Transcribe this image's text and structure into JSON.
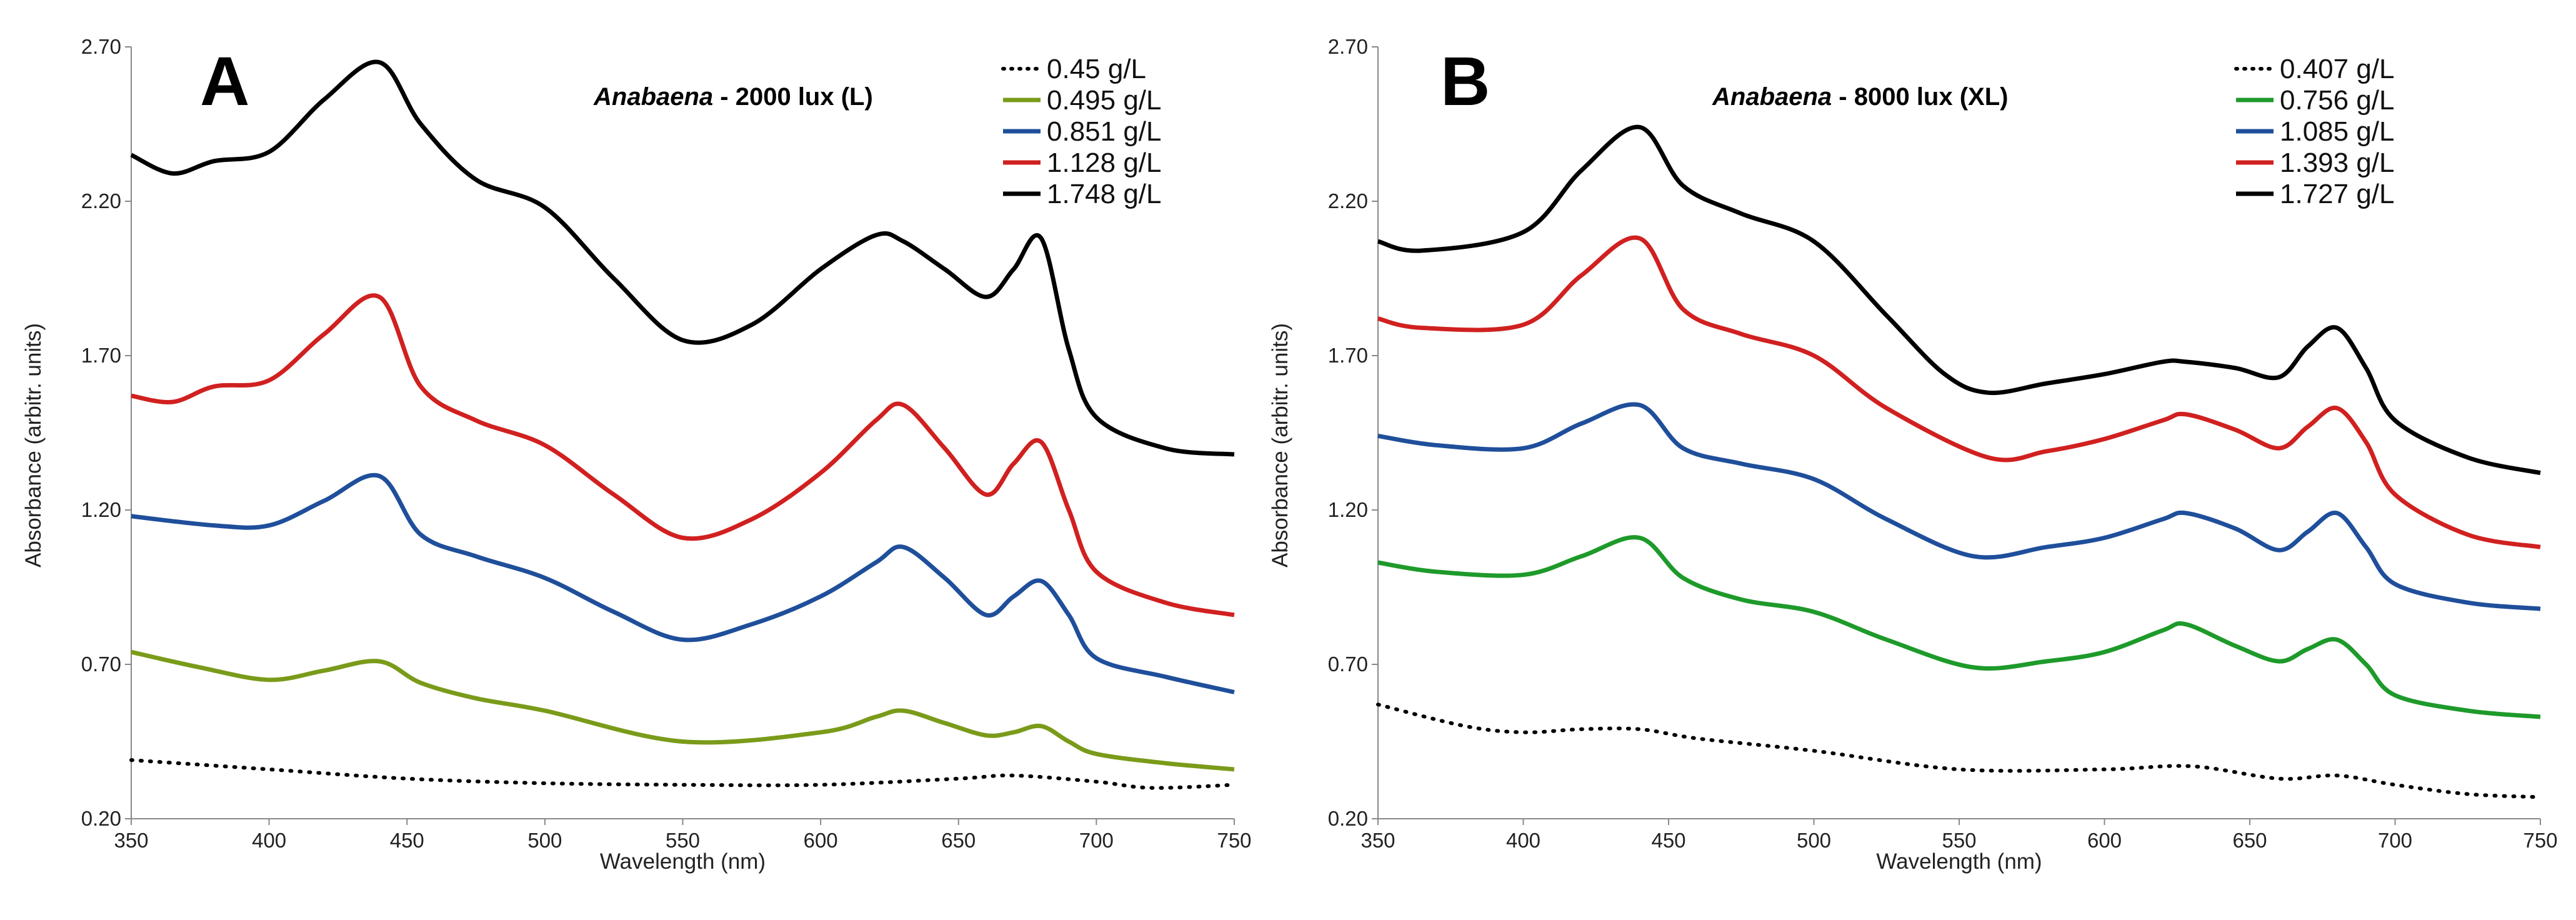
{
  "chart_data": [
    {
      "type": "line",
      "panel_label": "A",
      "title_italic": "Anabaena",
      "title_rest": " - 2000 lux (L)",
      "xlabel": "Wavelength (nm)",
      "ylabel": "Absorbance (arbitr. units)",
      "xlim": [
        350,
        750
      ],
      "ylim": [
        0.2,
        2.7
      ],
      "x_ticks": [
        "350",
        "400",
        "450",
        "500",
        "550",
        "600",
        "650",
        "700",
        "750"
      ],
      "y_ticks": [
        "0.20",
        "0.70",
        "1.20",
        "1.70",
        "2.20",
        "2.70"
      ],
      "series": [
        {
          "name": "0.45 g/L",
          "color": "#000000",
          "dashed": true,
          "x": [
            350,
            400,
            450,
            500,
            550,
            600,
            650,
            670,
            700,
            720,
            750
          ],
          "y": [
            0.39,
            0.36,
            0.33,
            0.315,
            0.31,
            0.31,
            0.33,
            0.34,
            0.32,
            0.3,
            0.31
          ]
        },
        {
          "name": "0.495 g/L",
          "color": "#7a9a1a",
          "dashed": false,
          "x": [
            350,
            375,
            400,
            420,
            440,
            455,
            475,
            500,
            550,
            600,
            620,
            630,
            645,
            660,
            670,
            680,
            690,
            700,
            725,
            750
          ],
          "y": [
            0.74,
            0.69,
            0.65,
            0.68,
            0.71,
            0.64,
            0.59,
            0.55,
            0.45,
            0.48,
            0.53,
            0.55,
            0.51,
            0.47,
            0.48,
            0.5,
            0.45,
            0.41,
            0.38,
            0.36
          ]
        },
        {
          "name": "0.851 g/L",
          "color": "#1f4e9a",
          "dashed": false,
          "x": [
            350,
            380,
            400,
            420,
            440,
            455,
            475,
            500,
            525,
            550,
            575,
            600,
            620,
            630,
            645,
            660,
            670,
            680,
            690,
            700,
            725,
            750
          ],
          "y": [
            1.18,
            1.15,
            1.15,
            1.23,
            1.31,
            1.12,
            1.05,
            0.98,
            0.87,
            0.78,
            0.83,
            0.92,
            1.03,
            1.08,
            0.98,
            0.86,
            0.92,
            0.97,
            0.86,
            0.72,
            0.66,
            0.61
          ]
        },
        {
          "name": "1.128 g/L",
          "color": "#d02020",
          "dashed": false,
          "x": [
            350,
            365,
            380,
            400,
            420,
            440,
            455,
            475,
            500,
            525,
            550,
            575,
            600,
            620,
            630,
            645,
            660,
            670,
            680,
            690,
            700,
            725,
            750
          ],
          "y": [
            1.57,
            1.55,
            1.6,
            1.62,
            1.77,
            1.89,
            1.6,
            1.49,
            1.41,
            1.25,
            1.11,
            1.17,
            1.32,
            1.49,
            1.54,
            1.4,
            1.25,
            1.35,
            1.42,
            1.2,
            1.0,
            0.9,
            0.86
          ]
        },
        {
          "name": "1.748 g/L",
          "color": "#000000",
          "dashed": false,
          "x": [
            350,
            365,
            380,
            400,
            420,
            440,
            455,
            475,
            500,
            525,
            550,
            575,
            600,
            620,
            630,
            645,
            660,
            670,
            680,
            690,
            700,
            725,
            750
          ],
          "y": [
            2.35,
            2.29,
            2.33,
            2.36,
            2.53,
            2.65,
            2.45,
            2.27,
            2.18,
            1.95,
            1.75,
            1.8,
            1.98,
            2.09,
            2.07,
            1.98,
            1.89,
            1.98,
            2.08,
            1.72,
            1.5,
            1.4,
            1.38
          ]
        }
      ]
    },
    {
      "type": "line",
      "panel_label": "B",
      "title_italic": "Anabaena",
      "title_rest": " - 8000 lux (XL)",
      "xlabel": "Wavelength (nm)",
      "ylabel": "Absorbance (arbitr. units)",
      "xlim": [
        350,
        750
      ],
      "ylim": [
        0.2,
        2.7
      ],
      "x_ticks": [
        "350",
        "400",
        "450",
        "500",
        "550",
        "600",
        "650",
        "700",
        "750"
      ],
      "y_ticks": [
        "0.20",
        "0.70",
        "1.20",
        "1.70",
        "2.20",
        "2.70"
      ],
      "series": [
        {
          "name": "0.407 g/L",
          "color": "#000000",
          "dashed": true,
          "x": [
            350,
            380,
            400,
            420,
            440,
            460,
            500,
            550,
            600,
            630,
            660,
            680,
            700,
            725,
            750
          ],
          "y": [
            0.57,
            0.5,
            0.48,
            0.49,
            0.49,
            0.46,
            0.42,
            0.36,
            0.36,
            0.37,
            0.33,
            0.34,
            0.31,
            0.28,
            0.27
          ]
        },
        {
          "name": "0.756 g/L",
          "color": "#1e9a2a",
          "dashed": false,
          "x": [
            350,
            370,
            400,
            420,
            440,
            455,
            475,
            500,
            525,
            555,
            580,
            600,
            620,
            628,
            645,
            660,
            670,
            680,
            690,
            700,
            725,
            750
          ],
          "y": [
            1.03,
            1.0,
            0.99,
            1.05,
            1.11,
            0.98,
            0.91,
            0.87,
            0.78,
            0.69,
            0.71,
            0.74,
            0.81,
            0.83,
            0.76,
            0.71,
            0.75,
            0.78,
            0.7,
            0.6,
            0.55,
            0.53
          ]
        },
        {
          "name": "1.085 g/L",
          "color": "#1f4e9a",
          "dashed": false,
          "x": [
            350,
            370,
            400,
            420,
            440,
            455,
            475,
            500,
            525,
            555,
            580,
            600,
            620,
            628,
            645,
            660,
            670,
            680,
            690,
            700,
            725,
            750
          ],
          "y": [
            1.44,
            1.41,
            1.4,
            1.48,
            1.54,
            1.4,
            1.35,
            1.3,
            1.17,
            1.05,
            1.08,
            1.11,
            1.17,
            1.19,
            1.14,
            1.07,
            1.13,
            1.19,
            1.08,
            0.96,
            0.9,
            0.88
          ]
        },
        {
          "name": "1.393 g/L",
          "color": "#d02020",
          "dashed": false,
          "x": [
            350,
            365,
            400,
            420,
            440,
            455,
            475,
            500,
            525,
            560,
            580,
            600,
            620,
            628,
            645,
            660,
            670,
            680,
            690,
            700,
            725,
            750
          ],
          "y": [
            1.82,
            1.79,
            1.8,
            1.96,
            2.08,
            1.85,
            1.77,
            1.7,
            1.53,
            1.37,
            1.39,
            1.43,
            1.49,
            1.51,
            1.46,
            1.4,
            1.47,
            1.53,
            1.42,
            1.25,
            1.12,
            1.08
          ]
        },
        {
          "name": "1.727 g/L",
          "color": "#000000",
          "dashed": false,
          "x": [
            350,
            365,
            400,
            420,
            440,
            455,
            475,
            500,
            525,
            545,
            560,
            580,
            600,
            620,
            628,
            645,
            660,
            670,
            680,
            690,
            700,
            725,
            750
          ],
          "y": [
            2.07,
            2.04,
            2.1,
            2.3,
            2.44,
            2.25,
            2.16,
            2.07,
            1.83,
            1.64,
            1.58,
            1.61,
            1.64,
            1.68,
            1.68,
            1.66,
            1.63,
            1.73,
            1.79,
            1.66,
            1.49,
            1.37,
            1.32
          ]
        }
      ]
    }
  ]
}
